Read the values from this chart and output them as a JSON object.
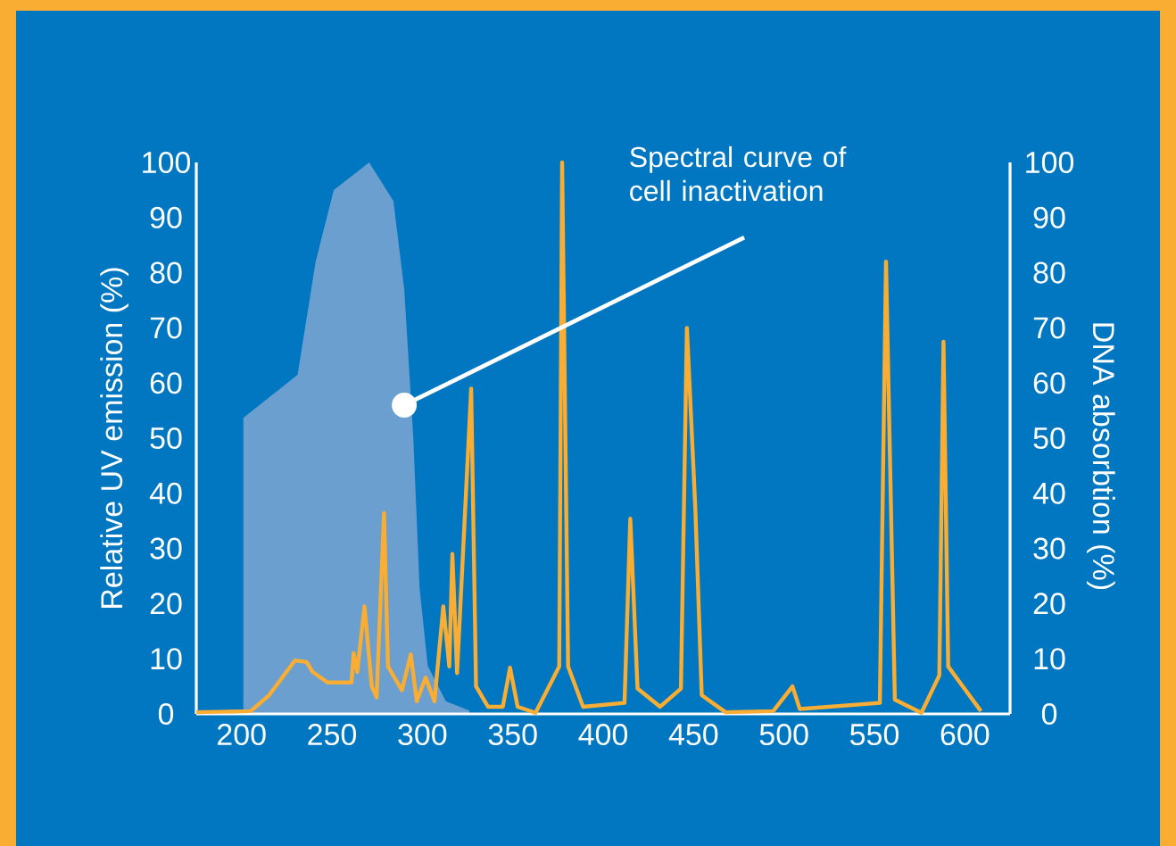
{
  "chart_data": {
    "type": "line",
    "ylabel": "Relative UV emission (%)",
    "y2label": "DNA absorbtion (%)",
    "xlim": [
      175,
      625
    ],
    "xticks": [
      200,
      250,
      300,
      350,
      400,
      450,
      500,
      550,
      600
    ],
    "ylim": [
      0,
      100
    ],
    "yticks": [
      0,
      10,
      20,
      30,
      40,
      50,
      60,
      70,
      80,
      90,
      100
    ],
    "y2lim": [
      0,
      100
    ],
    "y2ticks": [
      0,
      10,
      20,
      30,
      40,
      50,
      60,
      70,
      80,
      90,
      100
    ],
    "grid": false,
    "annotations": [
      {
        "text": "Spectral curve of cell inactivation",
        "x": 290,
        "y": 56
      }
    ],
    "series": [
      {
        "color": "#f9ad32",
        "x": [
          175,
          205,
          215,
          229.6,
          236,
          239.4,
          247.6,
          260.8,
          262,
          264,
          268,
          272,
          274.7,
          278.8,
          281,
          288.7,
          293.6,
          296.9,
          301.8,
          306.7,
          311.6,
          314.9,
          316.6,
          319.2,
          327,
          329.7,
          336.3,
          344.5,
          348.5,
          352.7,
          362.6,
          375.7,
          377.3,
          380.6,
          388.9,
          411.8,
          415,
          419,
          431.5,
          443,
          446.3,
          451,
          454.5,
          467.7,
          494,
          504.7,
          508.7,
          553,
          556.4,
          561.3,
          576,
          585.9,
          588.2,
          590.8,
          608.9
        ],
        "values": [
          0.3,
          0.5,
          3.3,
          9.7,
          9.4,
          7.6,
          5.7,
          5.7,
          11,
          7.6,
          19.5,
          5,
          3,
          36.4,
          8.6,
          4.3,
          10.8,
          2.3,
          6.6,
          2.3,
          19.5,
          8.6,
          29,
          7.4,
          59,
          5,
          1.3,
          1.3,
          8.4,
          1.3,
          0.2,
          8.6,
          100,
          8.6,
          1.3,
          2,
          35.4,
          4.6,
          1.3,
          4.6,
          70,
          37,
          3.4,
          0.3,
          0.5,
          5,
          0.9,
          2,
          82,
          2.6,
          0.2,
          7,
          67.5,
          8.6,
          0.5
        ]
      },
      {
        "type": "area",
        "axis": "y2",
        "color": "#6a9fd0",
        "x": [
          201,
          231,
          241,
          251,
          270.6,
          284,
          290,
          295,
          298.5,
          303,
          313,
          326
        ],
        "values": [
          53.7,
          61.5,
          82,
          95,
          100,
          93,
          77,
          50,
          22.7,
          8.7,
          2.3,
          0.6
        ]
      }
    ]
  }
}
